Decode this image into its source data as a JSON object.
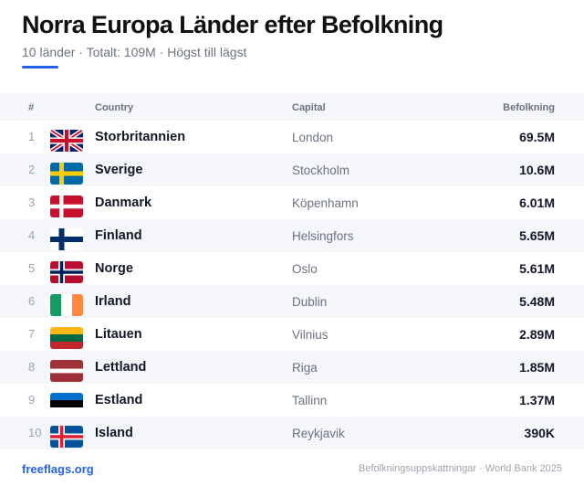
{
  "header": {
    "title": "Norra Europa Länder efter Befolkning",
    "subtitle": "10 länder · Totalt: 109M · Högst till lägst"
  },
  "table": {
    "columns": {
      "rank": "#",
      "country": "Country",
      "capital": "Capital",
      "population": "Befolkning"
    },
    "rows": [
      {
        "rank": "1",
        "flag": "uk-flag-icon",
        "country": "Storbritannien",
        "capital": "London",
        "population": "69.5M"
      },
      {
        "rank": "2",
        "flag": "sweden-flag-icon",
        "country": "Sverige",
        "capital": "Stockholm",
        "population": "10.6M"
      },
      {
        "rank": "3",
        "flag": "denmark-flag-icon",
        "country": "Danmark",
        "capital": "Köpenhamn",
        "population": "6.01M"
      },
      {
        "rank": "4",
        "flag": "finland-flag-icon",
        "country": "Finland",
        "capital": "Helsingfors",
        "population": "5.65M"
      },
      {
        "rank": "5",
        "flag": "norway-flag-icon",
        "country": "Norge",
        "capital": "Oslo",
        "population": "5.61M"
      },
      {
        "rank": "6",
        "flag": "ireland-flag-icon",
        "country": "Irland",
        "capital": "Dublin",
        "population": "5.48M"
      },
      {
        "rank": "7",
        "flag": "lithuania-flag-icon",
        "country": "Litauen",
        "capital": "Vilnius",
        "population": "2.89M"
      },
      {
        "rank": "8",
        "flag": "latvia-flag-icon",
        "country": "Lettland",
        "capital": "Riga",
        "population": "1.85M"
      },
      {
        "rank": "9",
        "flag": "estonia-flag-icon",
        "country": "Estland",
        "capital": "Tallinn",
        "population": "1.37M"
      },
      {
        "rank": "10",
        "flag": "iceland-flag-icon",
        "country": "Island",
        "capital": "Reykjavik",
        "population": "390K"
      }
    ]
  },
  "footer": {
    "brand": "freeflags.org",
    "source": "Befolkningsuppskattningar · World Bank 2025"
  },
  "colors": {
    "accent": "#2563eb",
    "alt_row": "#f4f6f9"
  }
}
